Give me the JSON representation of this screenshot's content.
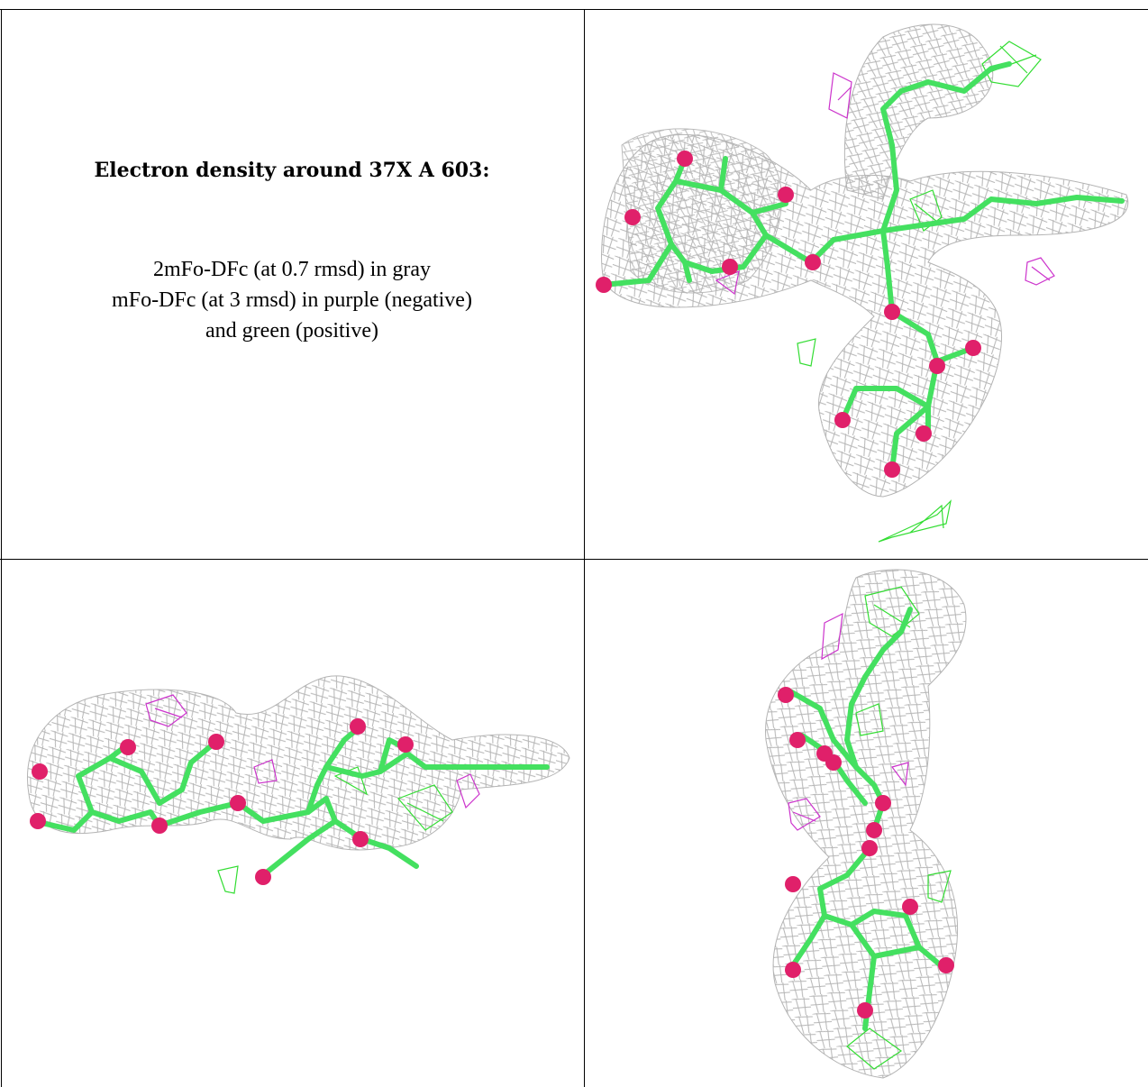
{
  "caption": {
    "title": "Electron density around 37X A 603:",
    "line1": "2mFo-DFc (at 0.7 rmsd) in gray",
    "line2": "mFo-DFc (at 3 rmsd) in purple (negative)",
    "line3": "and green (positive)"
  },
  "colors": {
    "density_2fofc": "#b4b4b4",
    "difference_negative": "#cc33cc",
    "difference_positive": "#33dd33",
    "carbon_bonds": "#44e060",
    "oxygen_atoms": "#e0206a",
    "border": "#000000"
  },
  "panels": [
    {
      "name": "view-1",
      "content": "ligand-density-view"
    },
    {
      "name": "view-2",
      "content": "ligand-density-view"
    },
    {
      "name": "view-3",
      "content": "ligand-density-view"
    }
  ]
}
